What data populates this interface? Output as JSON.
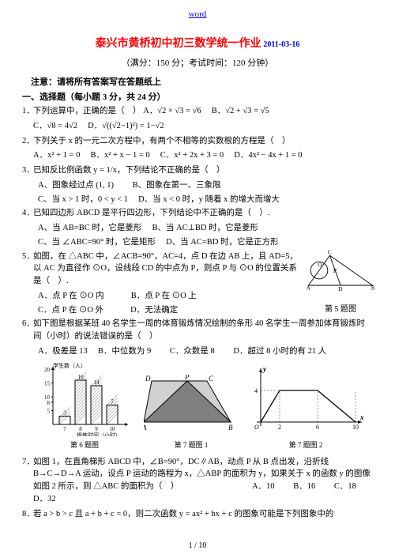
{
  "topLink": "word",
  "title": "泰兴市黄桥初中初三数学统一作业",
  "titleDate": "2011-03-16",
  "subtitle": "（满分：150 分；考试时间：120 分钟）",
  "notice": "注意：请将所有答案写在答题纸上",
  "section1": "一、选择题（每小题 3 分，共 24 分）",
  "q1": {
    "stem": "下列运算中，正确的是（　）",
    "A": "A．√2 × √3 = √6",
    "B": "B．√2 + √3 = √5",
    "C": "C．√8 = 4√2",
    "D": "D．√((√2−1)²) = 1−√2"
  },
  "q2": {
    "stem": "下列关于 x 的一元二次方程中，有两个不相等的实数根的方程是（　）",
    "A": "A．x² + 1 = 0",
    "B": "B．x² + x − 1 = 0",
    "C": "C．x² + 2x + 3 = 0",
    "D": "D．4x² − 4x + 1 = 0"
  },
  "q3": {
    "stem": "已知反比例函数 y = 1/x，下列结论不正确的是（　）",
    "A": "A、图象经过点 (1, 1)",
    "B": "B、图象在第一、三象限",
    "C": "C、当 x > 1 时，0 < y < 1",
    "D": "D、当 x < 0 时，y 随着 x 的增大而增大"
  },
  "q4": {
    "stem": "已知四边形 ABCD 是平行四边形，下列结论中不正确的是（　）.",
    "A": "A、当 AB=BC 时，它是菱形",
    "B": "B、当 AC⊥BD 时，它是菱形",
    "C": "C、当 ∠ABC=90° 时，它是矩形",
    "D": "D、当 AC=BD 时，它是正方形",
    "figCaption": "第 5 题图"
  },
  "q5": {
    "stem": "如图，在 △ABC 中，∠ACB=90°，AC=4，点 D 在边 AB 上，且 AD=5，以 AC 为直径作 ⊙O，设线段 CD 的中点为 P，则点 P 与 ⊙O 的位置关系是（　）.",
    "A": "A．点 P 在 ⊙O 内",
    "B": "B．点 P 在 ⊙O 上",
    "C": "C．点 P 在 ⊙O 外",
    "D": "D．无法确定"
  },
  "q6": {
    "stem": "如下图是根据某班 40 名学生一周的体育锻炼情况绘制的条形 40 名学生一周参加体育锻炼时间（小时）的说法错误的是（　）",
    "A": "A．极差是 13",
    "B": "B．中位数为 9",
    "C": "C．众数是 8",
    "D": "D．超过 8 小时的有 21 人"
  },
  "barChart": {
    "type": "bar",
    "categories": [
      "7",
      "8",
      "9",
      "10"
    ],
    "values": [
      3,
      16,
      14,
      7
    ],
    "labels": [
      "3",
      "16",
      "14",
      "7"
    ],
    "xlabel": "锻炼时间（小时）",
    "ylabel": "学生数（人）",
    "ylim": [
      0,
      20
    ],
    "yticks": [
      5,
      8,
      10,
      15,
      20
    ],
    "bar_color": "#ffffff",
    "hatch": "diagonal",
    "border_color": "#000000",
    "bg": "#ffffff",
    "caption": "第 6 题图"
  },
  "trapezoid": {
    "type": "diagram",
    "points": {
      "A": [
        0,
        60
      ],
      "B": [
        110,
        60
      ],
      "C": [
        80,
        8
      ],
      "D": [
        10,
        8
      ],
      "P": [
        55,
        8
      ]
    },
    "stroke": "#000000",
    "fill": "none",
    "caption": "第 7 题图 1"
  },
  "funcGraph": {
    "type": "line",
    "xlim": [
      0,
      10
    ],
    "ylim": [
      0,
      6
    ],
    "points": [
      [
        0,
        0
      ],
      [
        2,
        4
      ],
      [
        6,
        4
      ],
      [
        10,
        0
      ]
    ],
    "xticks": [
      2,
      6,
      10
    ],
    "yticks": [
      4
    ],
    "axis_color": "#000000",
    "line_color": "#000000",
    "bg": "#ffffff",
    "xlabel": "x",
    "ylabel": "y",
    "caption": "第 7 题图 2"
  },
  "q7": {
    "stem": "如图 1，在直角梯形 ABCD 中，∠B=90°，DC∥AB，动点 P 从 B 点出发，沿折线 B→C→D→A 运动，设点 P 运动的路程为 x，△ABP 的面积为 y，如果关于 x 的函数 y 的图像如图 2 所示，则 △ABC 的面积为（　）",
    "A": "A．10",
    "B": "B．16",
    "C": "C．18",
    "D": "D．32"
  },
  "q8": {
    "stem": "若 a > b > c 且 a + b + c = 0，则二次函数 y = ax² + bx + c 的图象可能是下列图象中的"
  },
  "footer": "1 / 10"
}
